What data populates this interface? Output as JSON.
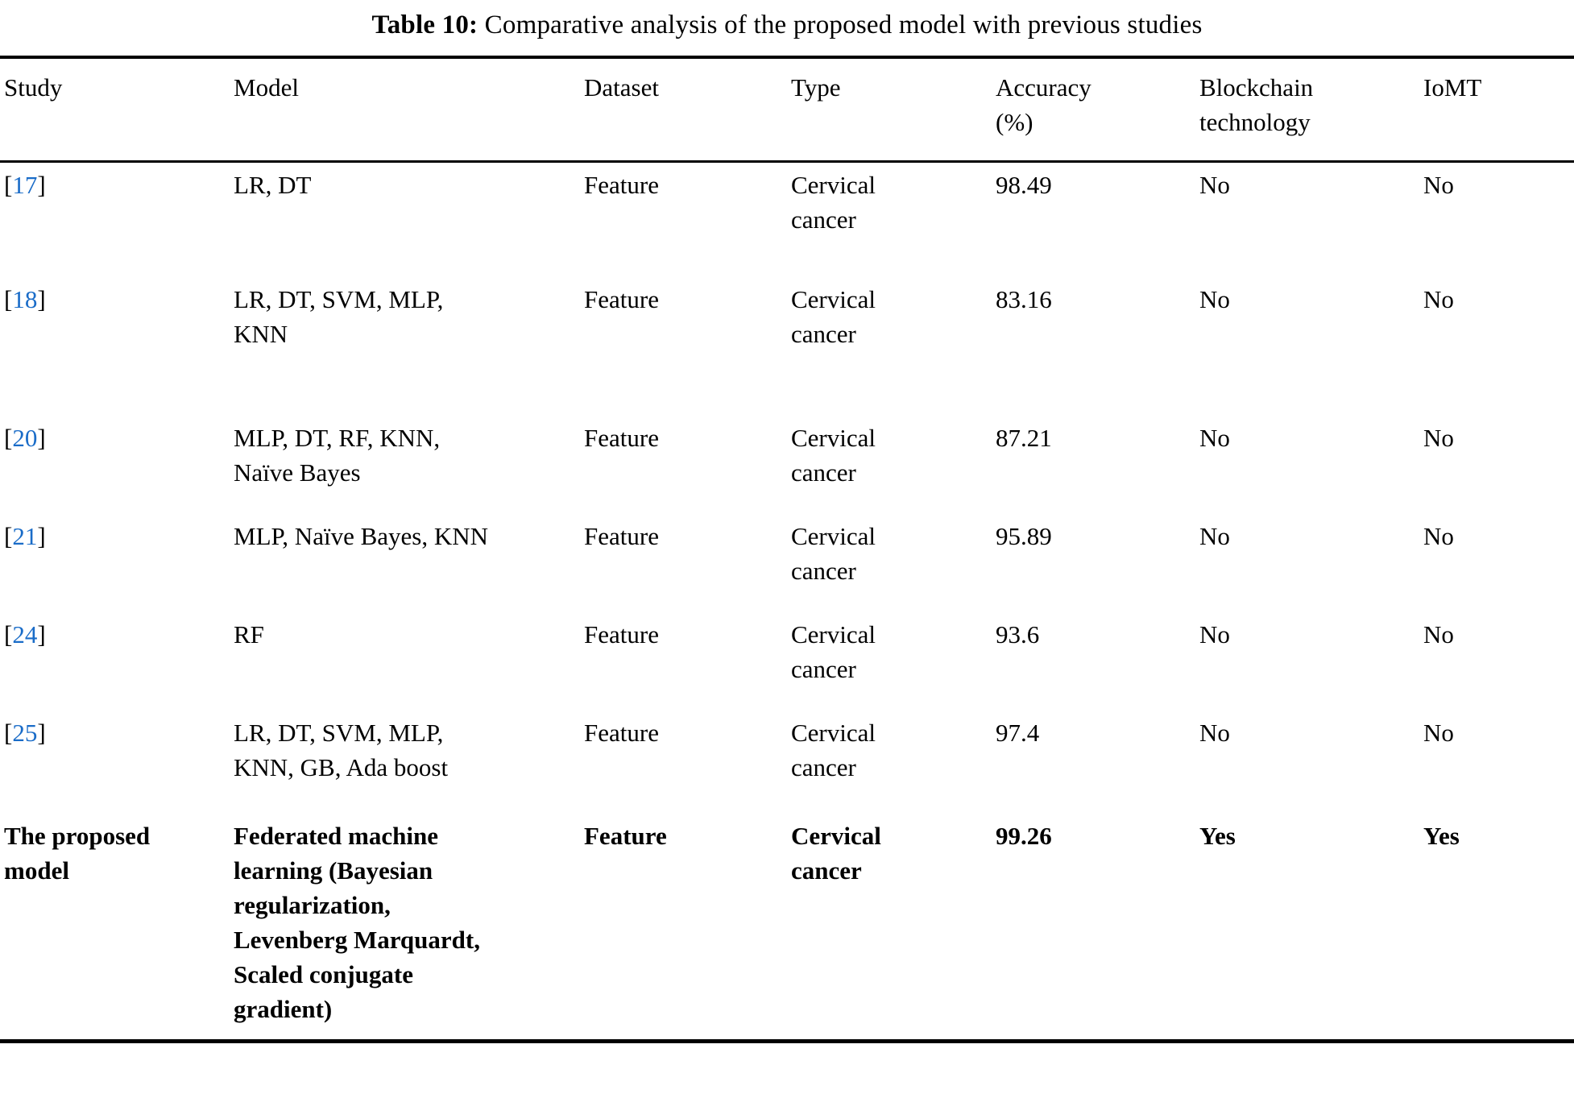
{
  "title": {
    "label": "Table 10:",
    "text": "Comparative analysis of the proposed model with previous studies"
  },
  "colors": {
    "text": "#000000",
    "link": "#1a6cc8",
    "rule": "#000000",
    "background": "#ffffff"
  },
  "table": {
    "headers": [
      "Study",
      "Model",
      "Dataset",
      "Type",
      "Accuracy (%)",
      "Blockchain technology",
      "IoMT"
    ],
    "rows": [
      {
        "study": {
          "prefix": "[",
          "ref": "17",
          "suffix": "]"
        },
        "model": "LR, DT",
        "dataset": "Feature",
        "type": "Cervical cancer",
        "accuracy": "98.49",
        "blockchain": "No",
        "iomt": "No"
      },
      {
        "study": {
          "prefix": "[",
          "ref": "18",
          "suffix": "]"
        },
        "model": "LR, DT, SVM, MLP, KNN",
        "dataset": "Feature",
        "type": "Cervical cancer",
        "accuracy": "83.16",
        "blockchain": "No",
        "iomt": "No"
      },
      {
        "study": {
          "prefix": "[",
          "ref": "20",
          "suffix": "]"
        },
        "model": "MLP, DT, RF, KNN, Naïve Bayes",
        "dataset": "Feature",
        "type": "Cervical cancer",
        "accuracy": "87.21",
        "blockchain": "No",
        "iomt": "No"
      },
      {
        "study": {
          "prefix": "[",
          "ref": "21",
          "suffix": "]"
        },
        "model": "MLP, Naïve Bayes, KNN",
        "dataset": "Feature",
        "type": "Cervical cancer",
        "accuracy": "95.89",
        "blockchain": "No",
        "iomt": "No"
      },
      {
        "study": {
          "prefix": "[",
          "ref": "24",
          "suffix": "]"
        },
        "model": "RF",
        "dataset": "Feature",
        "type": "Cervical cancer",
        "accuracy": "93.6",
        "blockchain": "No",
        "iomt": "No"
      },
      {
        "study": {
          "prefix": "[",
          "ref": "25",
          "suffix": "]"
        },
        "model": "LR, DT, SVM, MLP, KNN, GB, Ada boost",
        "dataset": "Feature",
        "type": "Cervical cancer",
        "accuracy": "97.4",
        "blockchain": "No",
        "iomt": "No"
      },
      {
        "study": {
          "text": "The proposed model"
        },
        "model": "Federated machine learning (Bayesian regularization, Levenberg Marquardt, Scaled conjugate gradient)",
        "dataset": "Feature",
        "type": "Cervical cancer",
        "accuracy": "99.26",
        "blockchain": "Yes",
        "iomt": "Yes"
      }
    ]
  }
}
